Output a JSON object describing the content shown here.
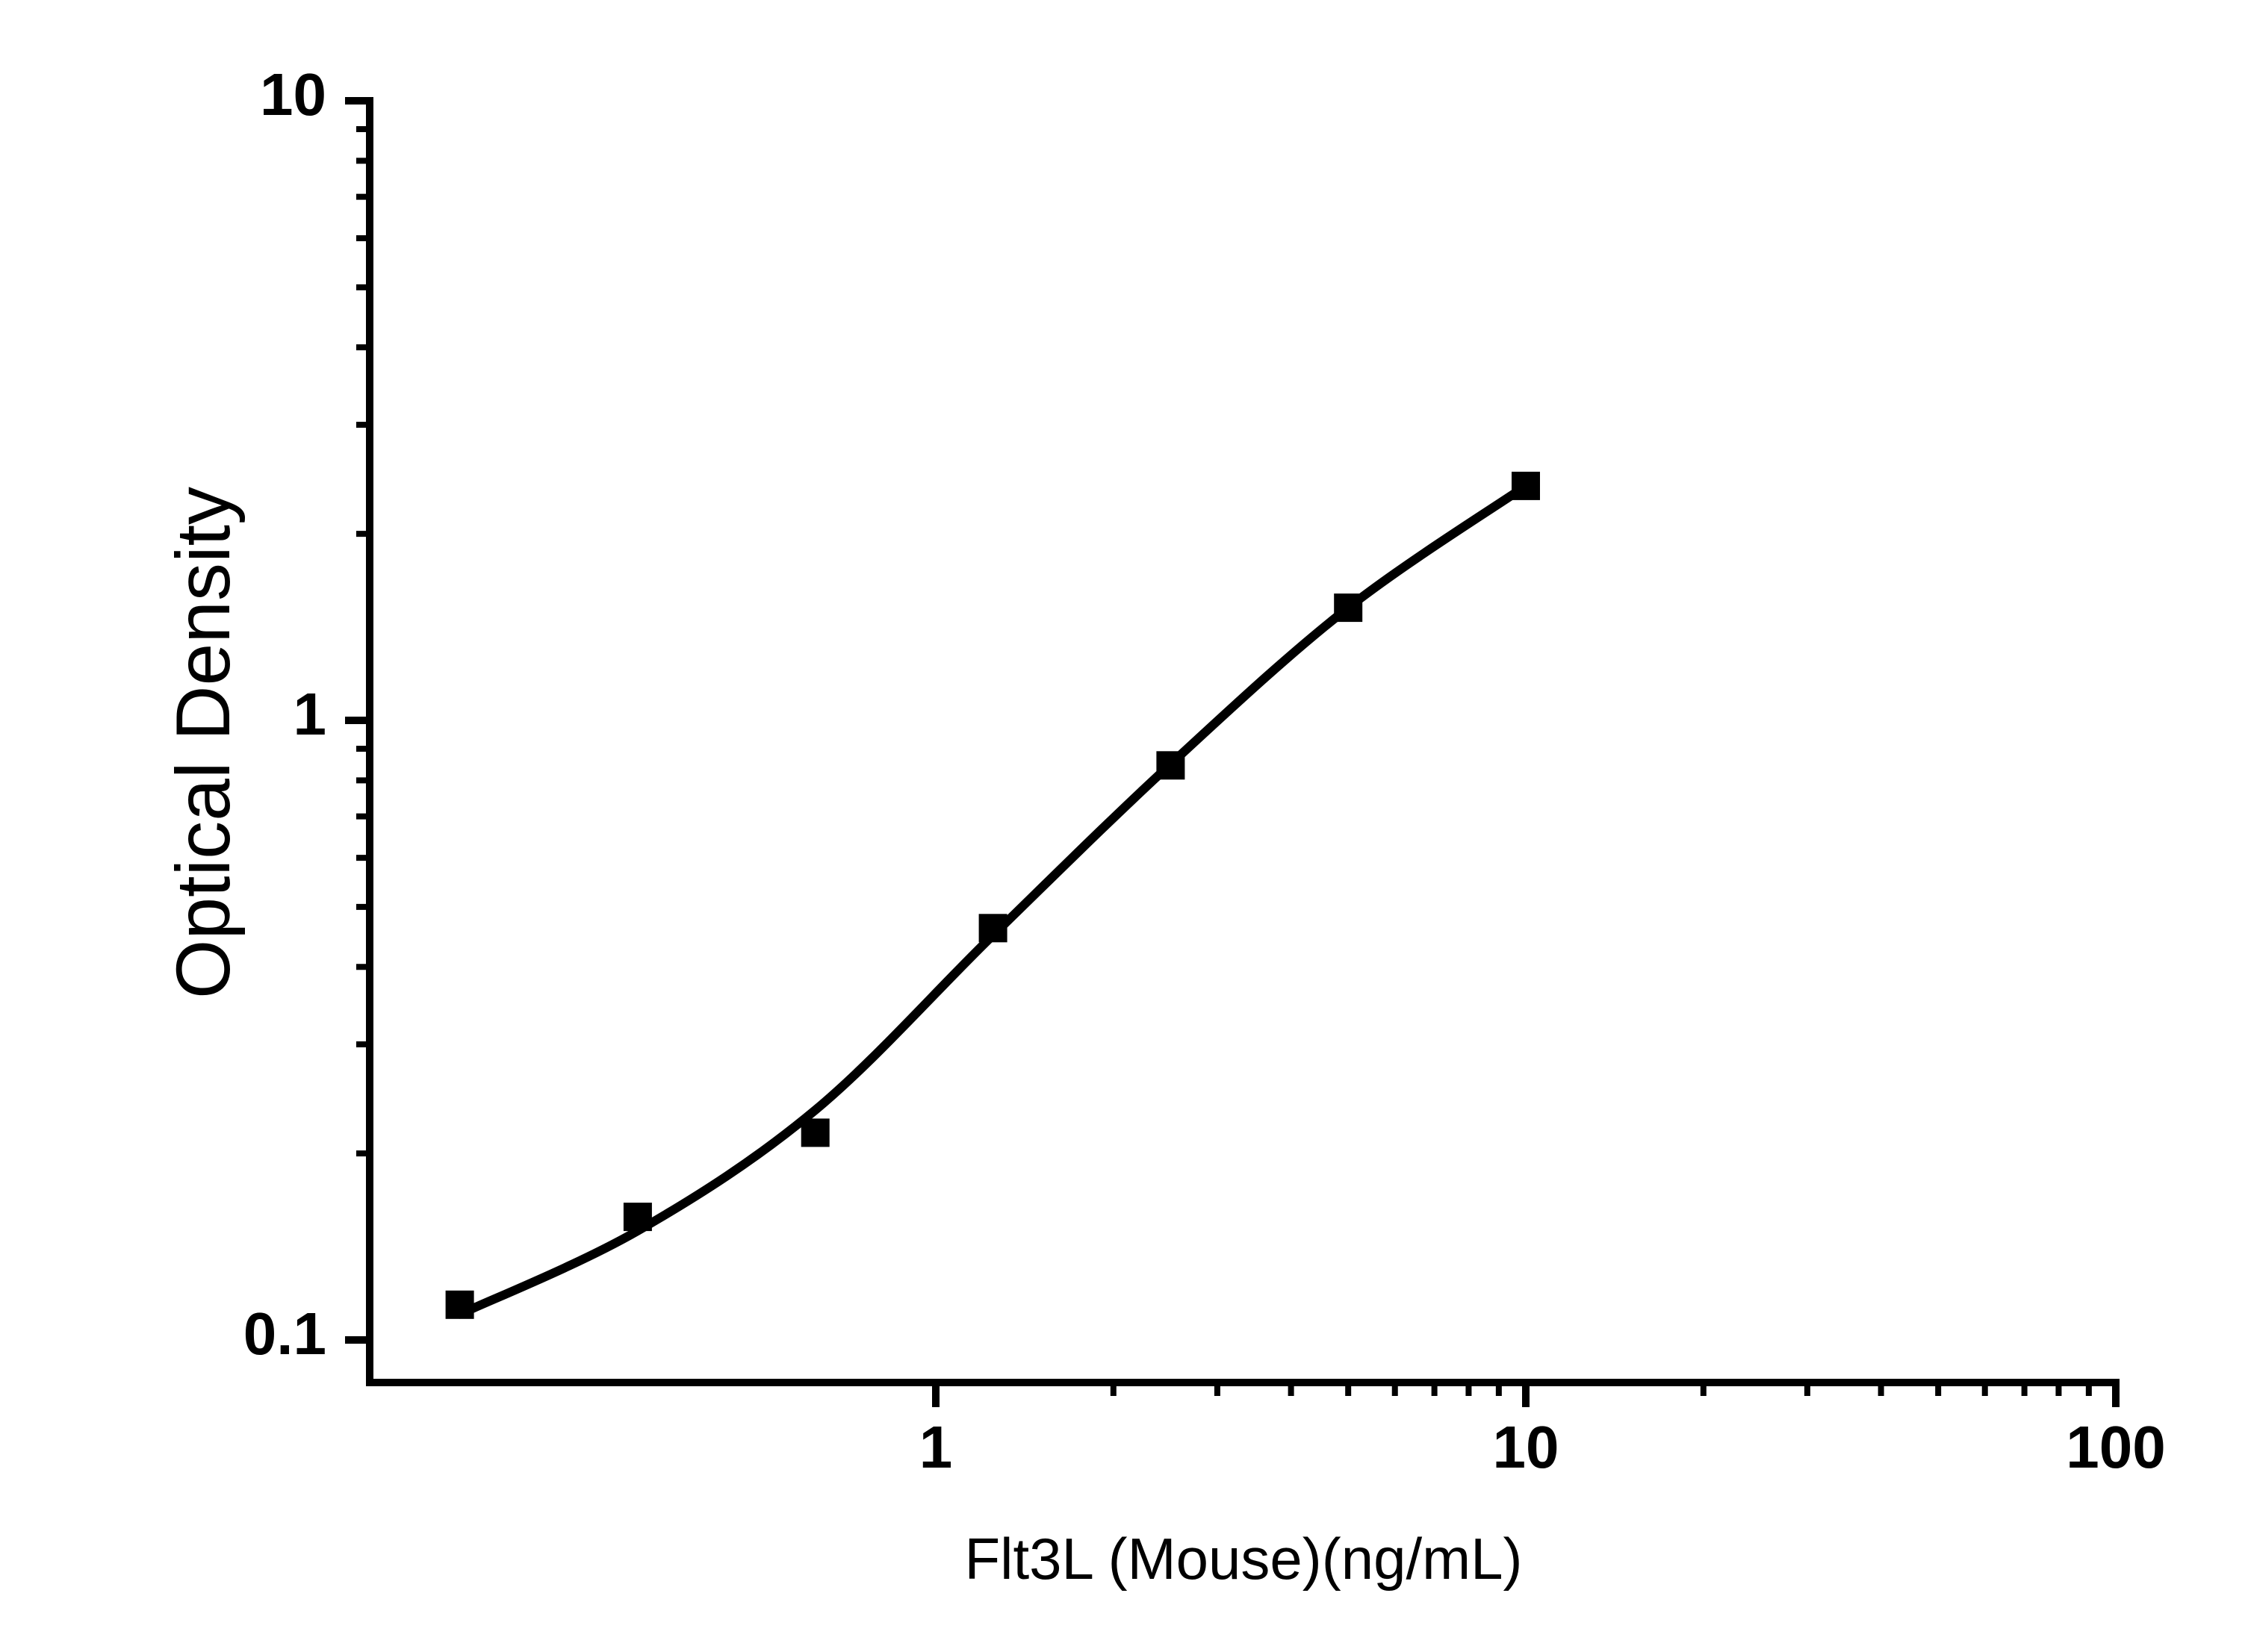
{
  "figure": {
    "background": "#ffffff"
  },
  "chart_data": {
    "type": "scatter",
    "title": "",
    "xlabel": "Flt3L (Mouse)(ng/mL)",
    "ylabel": "Optical Density",
    "x_scale": "log",
    "y_scale": "log",
    "xlim": [
      0.109,
      100
    ],
    "ylim": [
      0.085,
      10
    ],
    "grid": false,
    "legend": null,
    "colors": {
      "axis": "#000000",
      "curve": "#000000",
      "marker": "#000000",
      "text": "#000000",
      "background": "#ffffff"
    },
    "marker_shape": "square",
    "x_major_ticks": [
      1,
      10,
      100
    ],
    "x_major_tick_labels": [
      "1",
      "10",
      "100"
    ],
    "x_minor_ticks": [
      2,
      3,
      4,
      5,
      6,
      7,
      8,
      9,
      20,
      30,
      40,
      50,
      60,
      70,
      80,
      90
    ],
    "y_major_ticks": [
      10,
      1,
      0.1
    ],
    "y_major_tick_labels": [
      "10",
      "1",
      "0.1"
    ],
    "y_minor_ticks": [
      0.2,
      0.3,
      0.4,
      0.5,
      0.6,
      0.7,
      0.8,
      0.9,
      2,
      3,
      4,
      5,
      6,
      7,
      8,
      9
    ],
    "points": {
      "x": [
        0.156,
        0.3125,
        0.625,
        1.25,
        2.5,
        5,
        10
      ],
      "y": [
        0.114,
        0.158,
        0.216,
        0.462,
        0.846,
        1.52,
        2.39
      ]
    },
    "fit_curve": {
      "x": [
        0.156,
        0.3125,
        0.625,
        1.25,
        2.5,
        5,
        10
      ],
      "y": [
        0.11,
        0.15,
        0.235,
        0.45,
        0.85,
        1.52,
        2.39
      ]
    }
  }
}
